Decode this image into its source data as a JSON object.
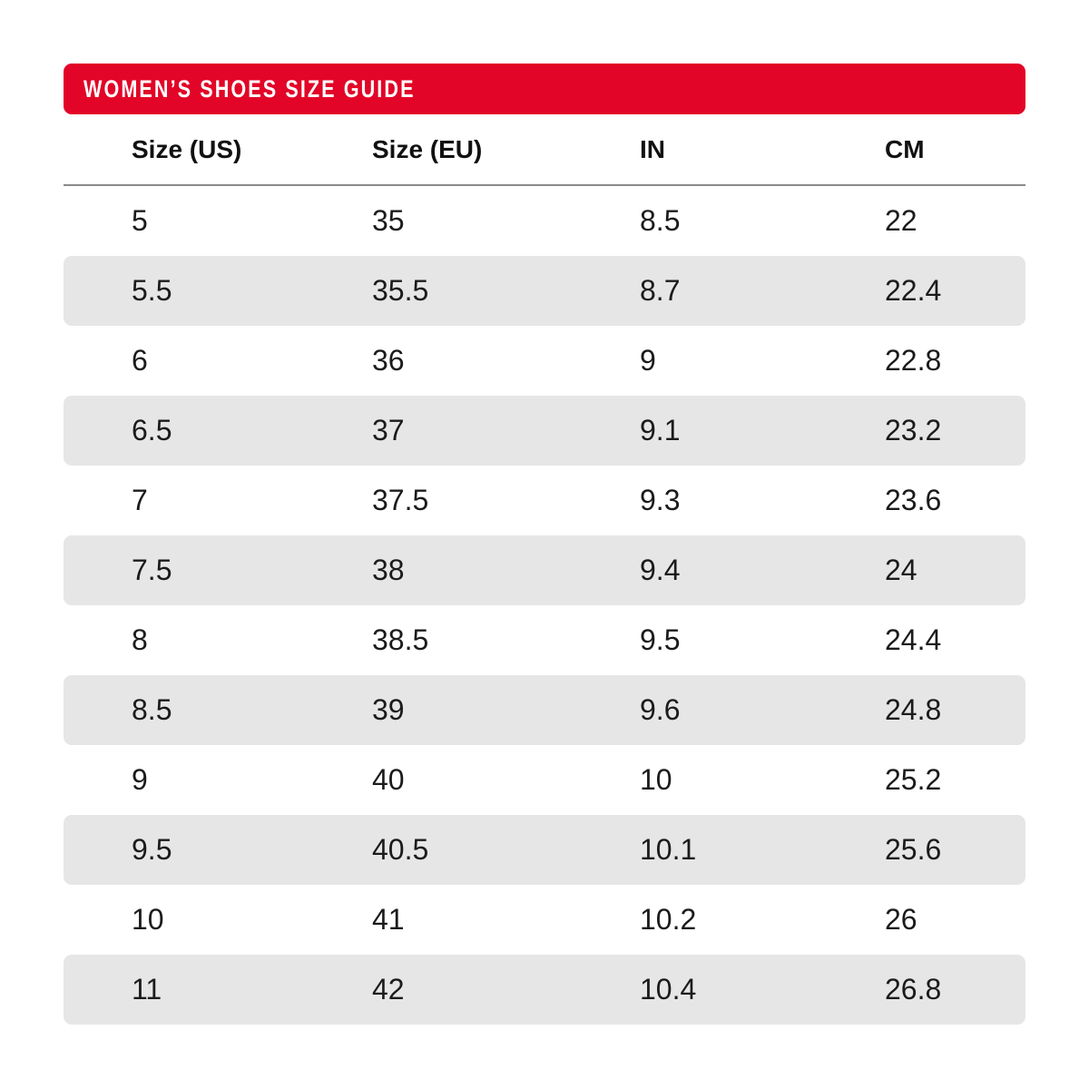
{
  "banner": {
    "label": "WOMEN’S SHOES SIZE GUIDE"
  },
  "colors": {
    "accent_red": "#E20527",
    "banner_text": "#FFFFFF",
    "zebra_gray": "#E6E6E7",
    "divider_gray": "#8A8A8A",
    "text": "#1B1B1B"
  },
  "chart_data": {
    "type": "table",
    "title": "WOMEN’S SHOES SIZE GUIDE",
    "columns": [
      "Size (US)",
      "Size (EU)",
      "IN",
      "CM"
    ],
    "rows": [
      [
        "5",
        "35",
        "8.5",
        "22"
      ],
      [
        "5.5",
        "35.5",
        "8.7",
        "22.4"
      ],
      [
        "6",
        "36",
        "9",
        "22.8"
      ],
      [
        "6.5",
        "37",
        "9.1",
        "23.2"
      ],
      [
        "7",
        "37.5",
        "9.3",
        "23.6"
      ],
      [
        "7.5",
        "38",
        "9.4",
        "24"
      ],
      [
        "8",
        "38.5",
        "9.5",
        "24.4"
      ],
      [
        "8.5",
        "39",
        "9.6",
        "24.8"
      ],
      [
        "9",
        "40",
        "10",
        "25.2"
      ],
      [
        "9.5",
        "40.5",
        "10.1",
        "25.6"
      ],
      [
        "10",
        "41",
        "10.2",
        "26"
      ],
      [
        "11",
        "42",
        "10.4",
        "26.8"
      ]
    ],
    "layout": {
      "zebra_striping": true,
      "first_row_background": "white",
      "header_divider": true
    }
  }
}
